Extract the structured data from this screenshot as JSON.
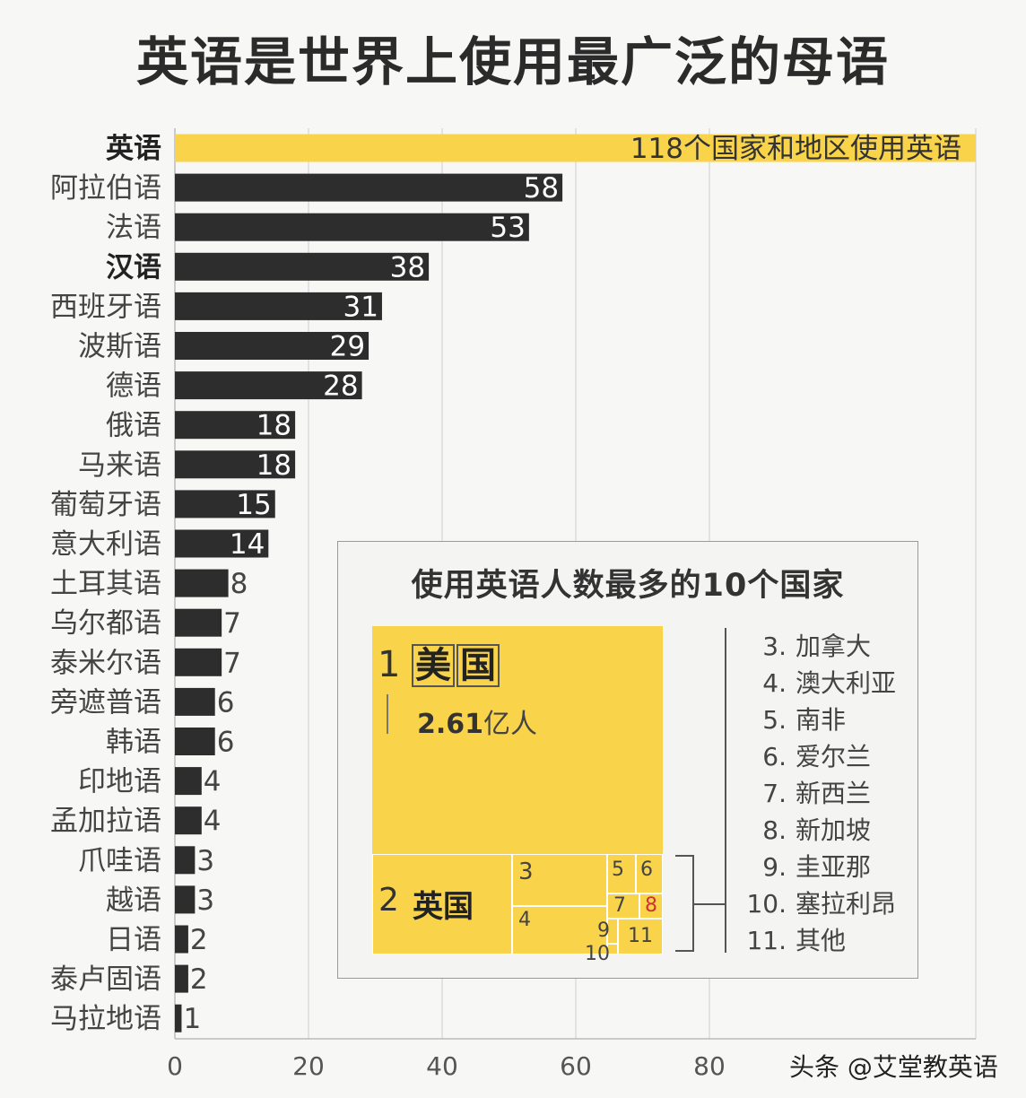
{
  "title": "英语是世界上使用最广泛的母语",
  "colors": {
    "highlight": "#f9d44b",
    "bar": "#2d2d2d",
    "grid": "#dcdcdc"
  },
  "chart_data": {
    "type": "bar",
    "orientation": "horizontal",
    "categories": [
      "英语",
      "阿拉伯语",
      "法语",
      "汉语",
      "西班牙语",
      "波斯语",
      "德语",
      "俄语",
      "马来语",
      "葡萄牙语",
      "意大利语",
      "土耳其语",
      "乌尔都语",
      "泰米尔语",
      "旁遮普语",
      "韩语",
      "印地语",
      "孟加拉语",
      "爪哇语",
      "越语",
      "日语",
      "泰卢固语",
      "马拉地语"
    ],
    "values": [
      118,
      58,
      53,
      38,
      31,
      29,
      28,
      18,
      18,
      15,
      14,
      8,
      7,
      7,
      6,
      6,
      4,
      4,
      3,
      3,
      2,
      2,
      1
    ],
    "value_labels": [
      "118个国家和地区使用英语",
      "58",
      "53",
      "38",
      "31",
      "29",
      "28",
      "18",
      "18",
      "15",
      "14",
      "8",
      "7",
      "7",
      "6",
      "6",
      "4",
      "4",
      "3",
      "3",
      "2",
      "2",
      "1"
    ],
    "highlight_index": 0,
    "bold_categories": [
      "英语",
      "汉语"
    ],
    "xticks": [
      "0",
      "20",
      "40",
      "60",
      "80"
    ],
    "xlim": [
      0,
      120
    ],
    "grid": true
  },
  "inset": {
    "title": "使用英语人数最多的10个国家",
    "us": {
      "rank": "1",
      "name": [
        "美",
        "国"
      ],
      "population_value": "2.61",
      "population_unit": "亿人"
    },
    "uk": {
      "rank": "2",
      "name": "英国"
    },
    "tiles": [
      "3",
      "4",
      "5",
      "6",
      "7",
      "8",
      "9",
      "10",
      "11"
    ],
    "legend": [
      {
        "num": "3.",
        "name": "加拿大"
      },
      {
        "num": "4.",
        "name": "澳大利亚"
      },
      {
        "num": "5.",
        "name": "南非"
      },
      {
        "num": "6.",
        "name": "爱尔兰"
      },
      {
        "num": "7.",
        "name": "新西兰"
      },
      {
        "num": "8.",
        "name": "新加坡"
      },
      {
        "num": "9.",
        "name": "圭亚那"
      },
      {
        "num": "10.",
        "name": "塞拉利昂"
      },
      {
        "num": "11.",
        "name": "其他"
      }
    ]
  },
  "watermark": "头条 @艾堂教英语"
}
